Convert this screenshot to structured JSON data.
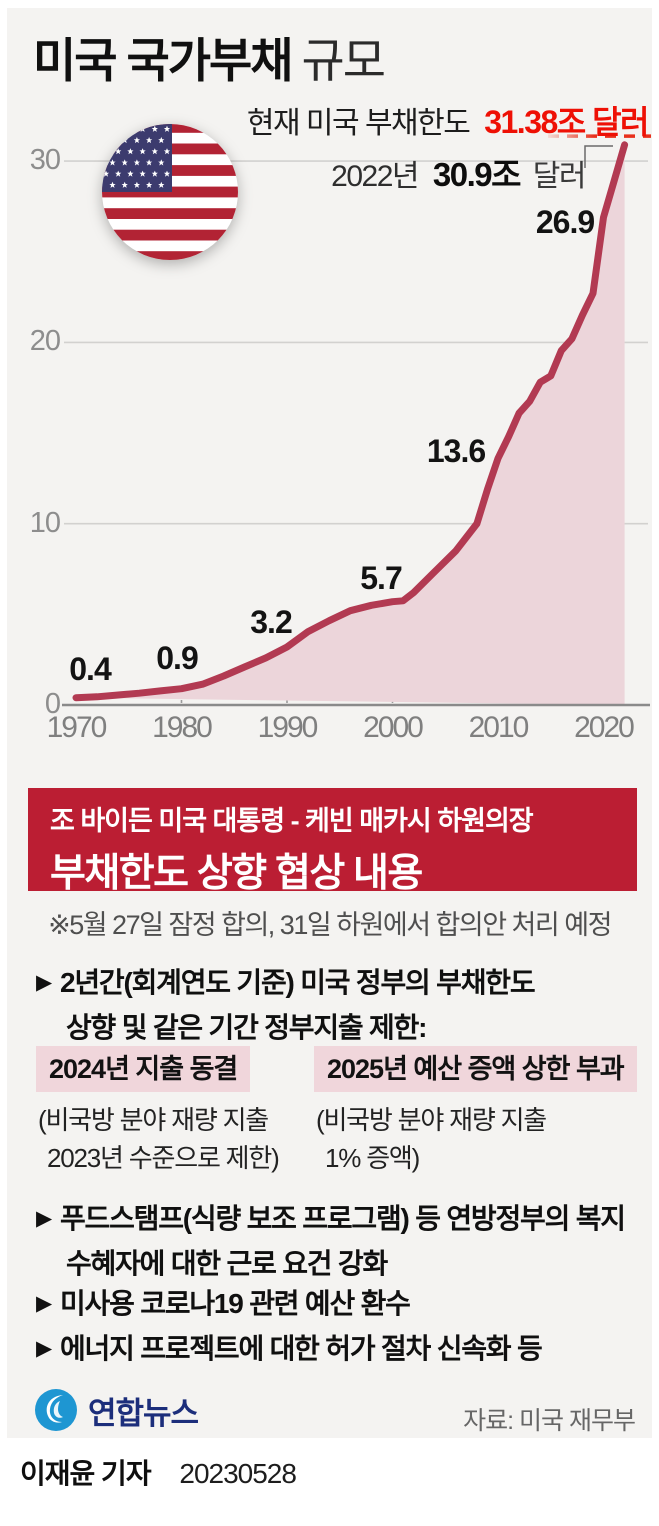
{
  "title": {
    "main": "미국 국가부채",
    "sub": "규모"
  },
  "annotations": {
    "limit_prefix": "현재 미국 부채한도",
    "limit_value": "31.38조 달러",
    "latest_year": "2022년",
    "latest_value": "30.9조",
    "latest_unit": "달러"
  },
  "chart_data": {
    "type": "area",
    "title": "미국 국가부채 규모 (조 달러)",
    "x": [
      1970,
      1972,
      1974,
      1976,
      1978,
      1980,
      1982,
      1984,
      1986,
      1988,
      1990,
      1992,
      1994,
      1996,
      1998,
      2000,
      2001,
      2002,
      2004,
      2006,
      2008,
      2009,
      2010,
      2011,
      2012,
      2013,
      2014,
      2015,
      2016,
      2017,
      2018,
      2019,
      2020,
      2021,
      2022
    ],
    "values": [
      0.4,
      0.45,
      0.55,
      0.65,
      0.78,
      0.9,
      1.15,
      1.6,
      2.1,
      2.6,
      3.2,
      4.05,
      4.65,
      5.2,
      5.5,
      5.7,
      5.75,
      6.2,
      7.35,
      8.5,
      10.0,
      11.9,
      13.6,
      14.8,
      16.1,
      16.75,
      17.8,
      18.15,
      19.55,
      20.2,
      21.5,
      22.7,
      26.9,
      28.9,
      30.9
    ],
    "labeled_points": [
      {
        "year": 1970,
        "value": 0.4,
        "label": "0.4"
      },
      {
        "year": 1980,
        "value": 0.9,
        "label": "0.9"
      },
      {
        "year": 1990,
        "value": 3.2,
        "label": "3.2"
      },
      {
        "year": 2000,
        "value": 5.7,
        "label": "5.7"
      },
      {
        "year": 2010,
        "value": 13.6,
        "label": "13.6"
      },
      {
        "year": 2020,
        "value": 26.9,
        "label": "26.9"
      }
    ],
    "xticks": [
      "1970",
      "1980",
      "1990",
      "2000",
      "2010",
      "2020"
    ],
    "yticks": [
      "0",
      "10",
      "20",
      "30"
    ],
    "ylim": [
      0,
      31.38
    ],
    "debt_limit": 31.38,
    "latest": {
      "year": 2022,
      "value": 30.9
    },
    "grid": true,
    "colors": {
      "line": "#b23a52",
      "fill": "#ecd5da",
      "limit": "#e8301c"
    }
  },
  "banner": {
    "line1": "조 바이든 미국 대통령 - 케빈 매카시 하원의장",
    "line2": "부채한도 상향 협상 내용"
  },
  "note": "※5월 27일 잠정 합의, 31일 하원에서 합의안 처리 예정",
  "bullets": [
    {
      "marker": "▶",
      "lines": [
        "2년간(회계연도 기준) 미국 정부의 부채한도",
        "상향 및 같은 기간 정부지출 제한:"
      ]
    },
    {
      "marker": "▶",
      "lines": [
        "푸드스탬프(식량 보조 프로그램) 등 연방정부의 복지",
        "수혜자에 대한 근로 요건 강화"
      ]
    },
    {
      "marker": "▶",
      "lines": [
        "미사용 코로나19 관련 예산 환수"
      ]
    },
    {
      "marker": "▶",
      "lines": [
        "에너지 프로젝트에 대한 허가 절차 신속화 등"
      ]
    }
  ],
  "chips": [
    {
      "label": "2024년 지출 동결",
      "desc_line1": "(비국방 분야 재량 지출",
      "desc_line2": "2023년 수준으로 제한)"
    },
    {
      "label": "2025년 예산 증액 상한 부과",
      "desc_line1": "(비국방 분야 재량 지출",
      "desc_line2": "1% 증액)"
    }
  ],
  "footer": {
    "logo_text": "연합뉴스",
    "source": "자료: 미국 재무부"
  },
  "byline": {
    "reporter": "이재윤 기자",
    "date": "20230528"
  }
}
